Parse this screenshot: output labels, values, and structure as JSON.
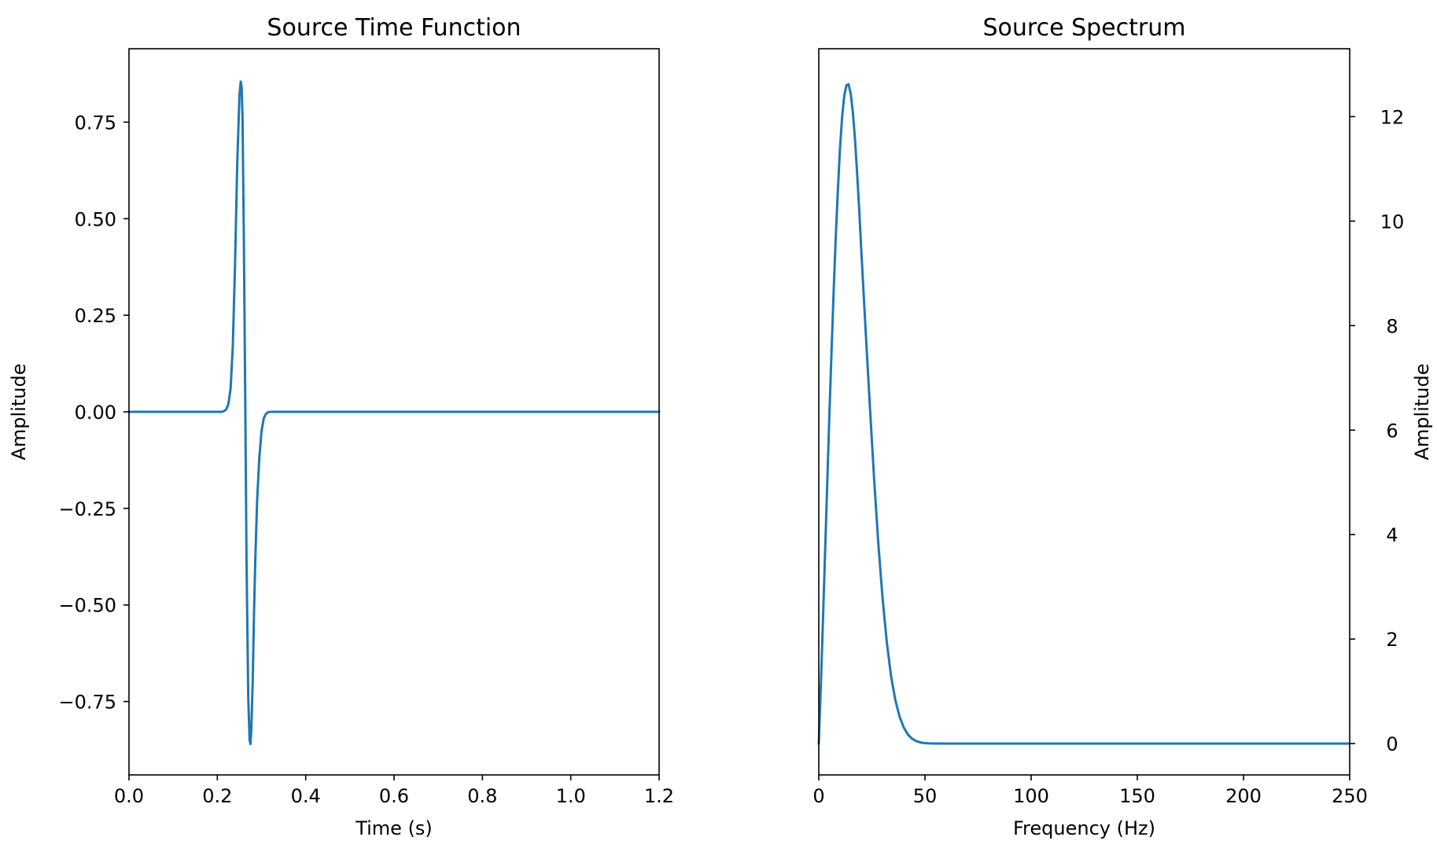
{
  "chart_data": [
    {
      "type": "line",
      "title": "Source Time Function",
      "xlabel": "Time (s)",
      "ylabel": "Amplitude",
      "xlim": [
        0.0,
        1.2
      ],
      "ylim": [
        -0.94,
        0.94
      ],
      "xticks": [
        0.0,
        0.2,
        0.4,
        0.6,
        0.8,
        1.0,
        1.2
      ],
      "xtick_labels": [
        "0.0",
        "0.2",
        "0.4",
        "0.6",
        "0.8",
        "1.0",
        "1.2"
      ],
      "yticks": [
        -0.75,
        -0.5,
        -0.25,
        0.0,
        0.25,
        0.5,
        0.75
      ],
      "ytick_labels": [
        "−0.75",
        "−0.50",
        "−0.25",
        "0.00",
        "0.25",
        "0.50",
        "0.75"
      ],
      "y_axis_position": "left",
      "grid": false,
      "color": "#1f77b4",
      "series": [
        {
          "x": [
            0.0,
            0.2,
            0.21,
            0.215,
            0.22,
            0.225,
            0.23,
            0.235,
            0.24,
            0.245,
            0.25,
            0.253,
            0.255,
            0.257,
            0.26,
            0.263,
            0.266,
            0.27,
            0.273,
            0.275,
            0.277,
            0.28,
            0.283,
            0.286,
            0.29,
            0.295,
            0.3,
            0.305,
            0.31,
            0.315,
            0.32,
            0.33,
            0.35,
            1.2
          ],
          "y": [
            0.0,
            0.0,
            0.0,
            0.002,
            0.006,
            0.02,
            0.06,
            0.17,
            0.38,
            0.64,
            0.82,
            0.855,
            0.84,
            0.76,
            0.45,
            0.05,
            -0.38,
            -0.74,
            -0.85,
            -0.86,
            -0.82,
            -0.7,
            -0.52,
            -0.38,
            -0.23,
            -0.12,
            -0.05,
            -0.017,
            -0.005,
            -0.001,
            0.0,
            0.0,
            0.0,
            0.0
          ]
        }
      ]
    },
    {
      "type": "line",
      "title": "Source Spectrum",
      "xlabel": "Frequency (Hz)",
      "ylabel": "Amplitude",
      "xlim": [
        0,
        250
      ],
      "ylim": [
        -0.6,
        13.3
      ],
      "xticks": [
        0,
        50,
        100,
        150,
        200,
        250
      ],
      "xtick_labels": [
        "0",
        "50",
        "100",
        "150",
        "200",
        "250"
      ],
      "yticks": [
        0,
        2,
        4,
        6,
        8,
        10,
        12
      ],
      "ytick_labels": [
        "0",
        "2",
        "4",
        "6",
        "8",
        "10",
        "12"
      ],
      "y_axis_position": "right",
      "grid": false,
      "color": "#1f77b4",
      "series": [
        {
          "x": [
            0,
            1,
            2,
            3,
            4,
            5,
            6,
            7,
            8,
            9,
            10,
            11,
            12,
            13,
            14,
            15,
            16,
            17,
            18,
            19,
            20,
            22,
            24,
            26,
            28,
            30,
            32,
            34,
            36,
            38,
            40,
            42,
            44,
            46,
            48,
            50,
            52,
            55,
            60,
            70,
            250
          ],
          "y": [
            0.0,
            1.15,
            2.4,
            3.7,
            5.0,
            6.3,
            7.5,
            8.65,
            9.7,
            10.6,
            11.4,
            12.0,
            12.4,
            12.6,
            12.62,
            12.45,
            12.1,
            11.6,
            10.95,
            10.25,
            9.45,
            7.95,
            6.5,
            5.1,
            3.85,
            2.8,
            1.95,
            1.3,
            0.84,
            0.52,
            0.31,
            0.17,
            0.09,
            0.045,
            0.02,
            0.009,
            0.004,
            0.001,
            0.0,
            0.0,
            0.0
          ]
        }
      ]
    }
  ]
}
